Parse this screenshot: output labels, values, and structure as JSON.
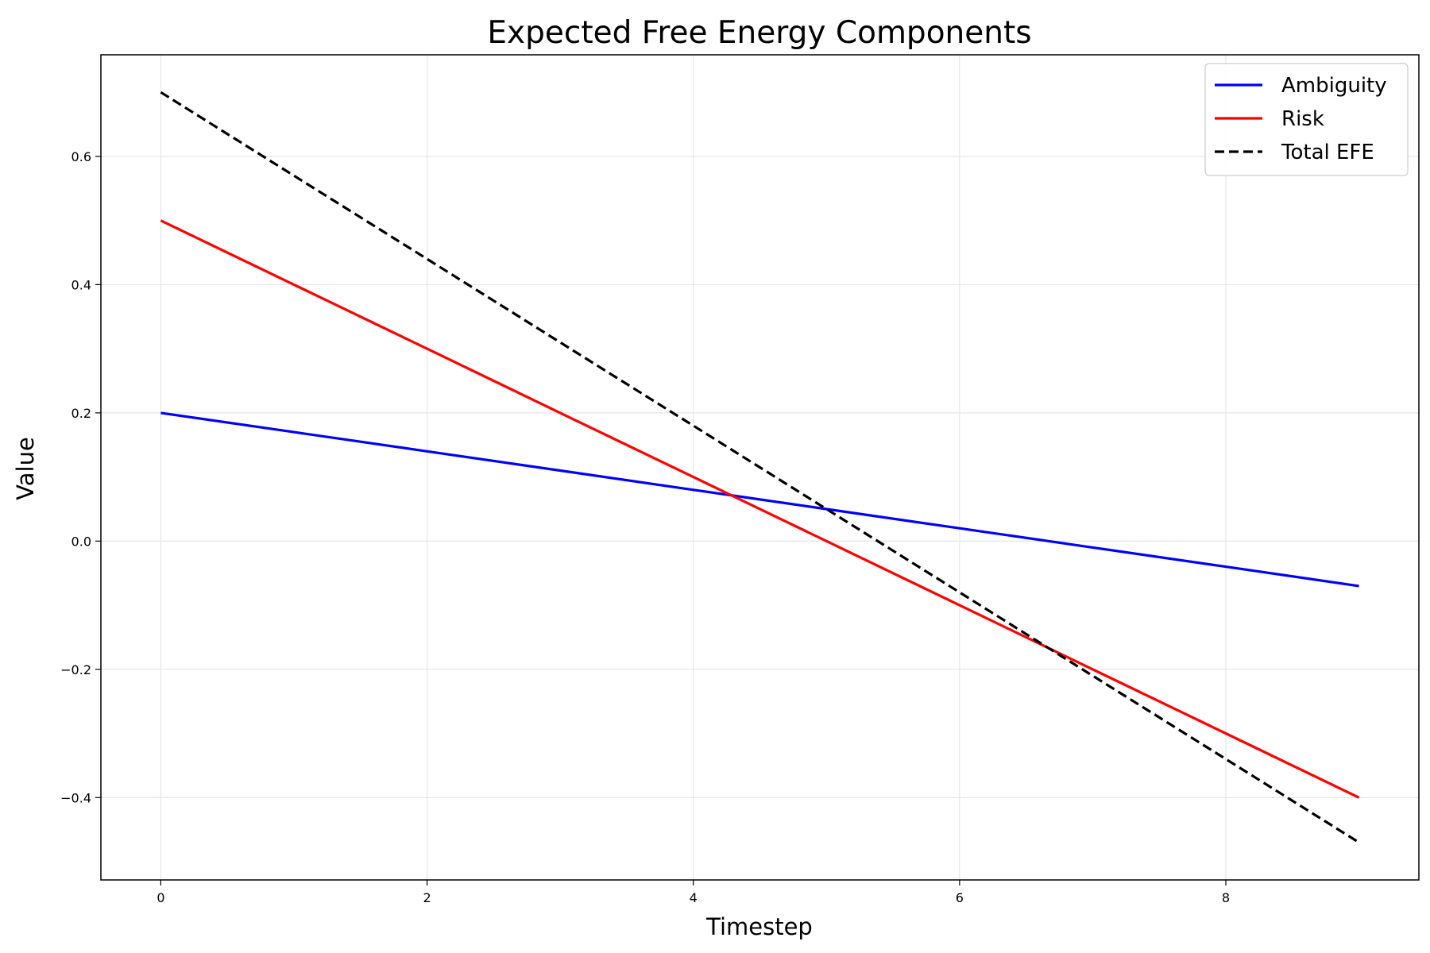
{
  "chart_data": {
    "type": "line",
    "title": "Expected Free Energy Components",
    "xlabel": "Timestep",
    "ylabel": "Value",
    "xlim": [
      -0.45,
      9.45
    ],
    "ylim": [
      -0.5285,
      0.7585
    ],
    "grid": true,
    "legend_position": "top-right",
    "x_ticks": [
      0,
      2,
      4,
      6,
      8
    ],
    "x_tick_labels": [
      "0",
      "2",
      "4",
      "6",
      "8"
    ],
    "y_ticks": [
      -0.4,
      -0.2,
      0.0,
      0.2,
      0.4,
      0.6
    ],
    "y_tick_labels": [
      "−0.4",
      "−0.2",
      "0.0",
      "0.2",
      "0.4",
      "0.6"
    ],
    "x": [
      0,
      1,
      2,
      3,
      4,
      5,
      6,
      7,
      8,
      9
    ],
    "series": [
      {
        "name": "Ambiguity",
        "color": "#0000ff",
        "dash": "solid",
        "values": [
          0.2,
          0.17,
          0.14,
          0.11,
          0.08,
          0.05,
          0.02,
          -0.01,
          -0.04,
          -0.07
        ]
      },
      {
        "name": "Risk",
        "color": "#ff0000",
        "dash": "solid",
        "values": [
          0.5,
          0.4,
          0.3,
          0.2,
          0.1,
          0.0,
          -0.1,
          -0.2,
          -0.3,
          -0.4
        ]
      },
      {
        "name": "Total EFE",
        "color": "#000000",
        "dash": "dashed",
        "values": [
          0.7,
          0.57,
          0.44,
          0.31,
          0.18,
          0.05,
          -0.08,
          -0.21,
          -0.34,
          -0.47
        ]
      }
    ]
  }
}
